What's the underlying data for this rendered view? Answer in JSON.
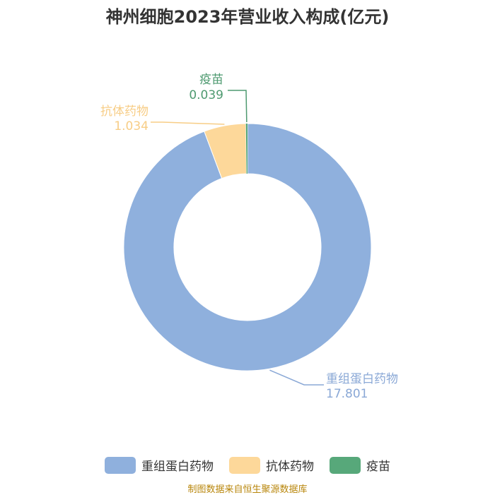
{
  "title": "神州细胞2023年营业收入构成(亿元)",
  "source_note": "制图数据来自恒生聚源数据库",
  "chart_data": {
    "type": "pie",
    "donut": true,
    "title": "神州细胞2023年营业收入构成(亿元)",
    "legend_position": "bottom",
    "categories": [
      "重组蛋白药物",
      "抗体药物",
      "疫苗"
    ],
    "values": [
      17.801,
      1.034,
      0.039
    ],
    "value_labels": [
      "17.801",
      "1.034",
      "0.039"
    ],
    "colors": [
      "#8fb0dd",
      "#fdd89a",
      "#57a87a"
    ],
    "label_colors": [
      "#8aa8d6",
      "#f7cd86",
      "#4e9a70"
    ]
  }
}
